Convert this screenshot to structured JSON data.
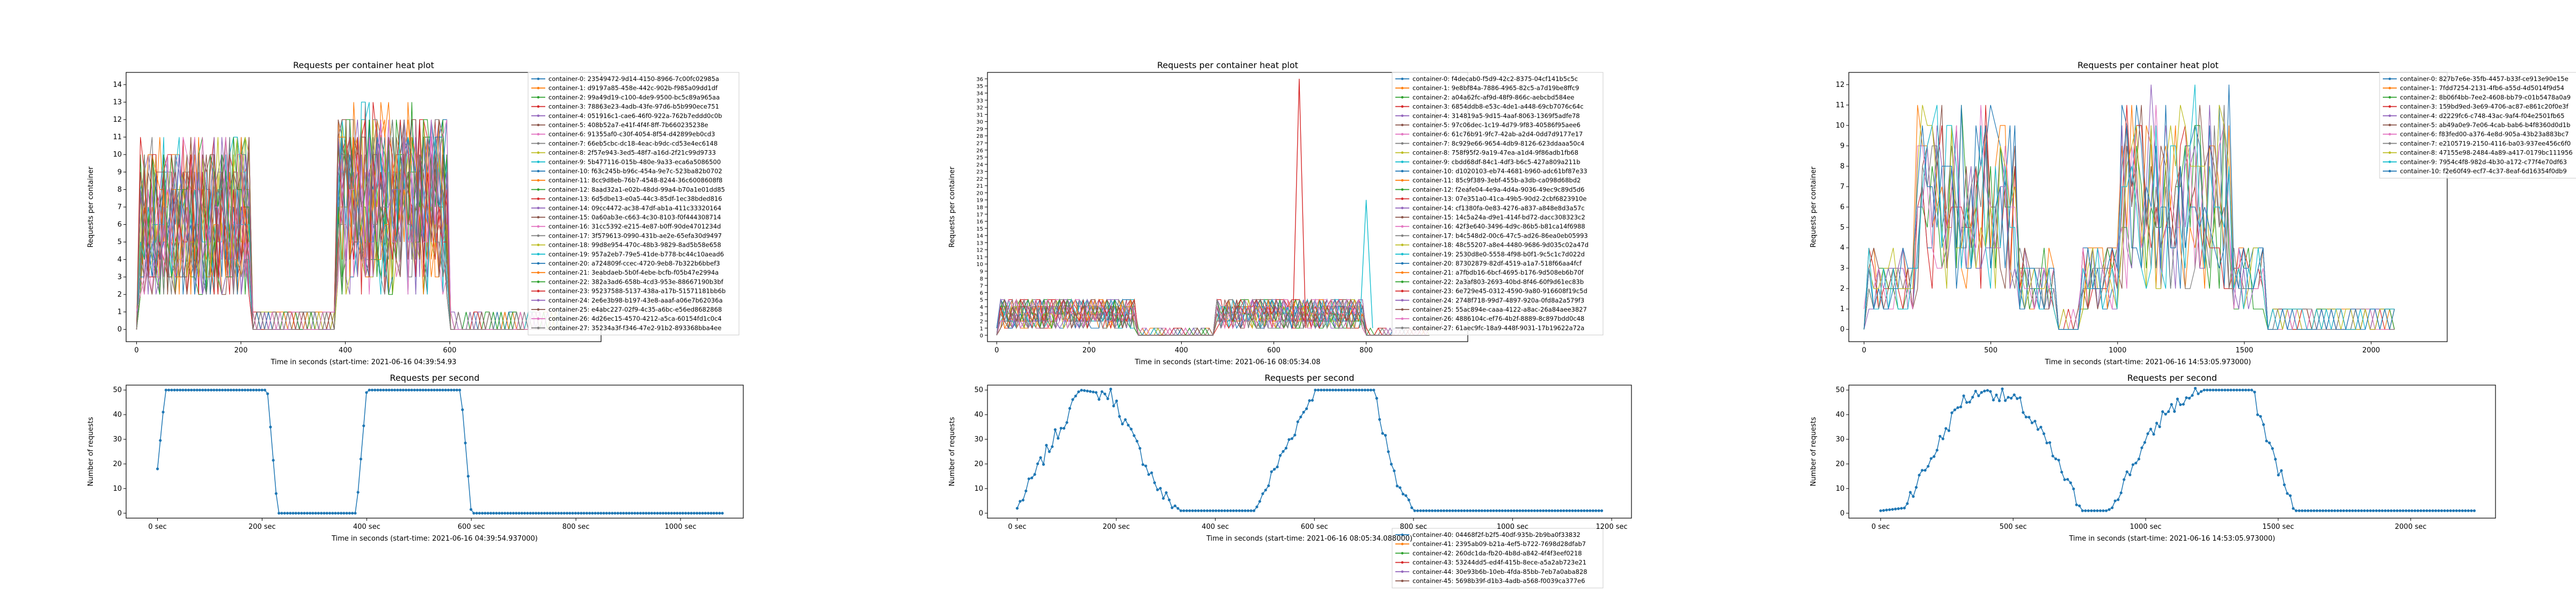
{
  "chart_data": [
    {
      "type": "line",
      "title": "Requests per container heat plot",
      "xlabel": "Time in seconds (start-time: 2021-06-16 04:39:54.93",
      "ylabel": "Requests per container",
      "xlim": [
        -20,
        890
      ],
      "ylim": [
        -0.7,
        14.7
      ],
      "xticks": [
        0,
        200,
        400,
        600
      ],
      "yticks": [
        0,
        1,
        2,
        3,
        4,
        5,
        6,
        7,
        8,
        9,
        10,
        11,
        12,
        13,
        14
      ],
      "legend": [
        "container-0: 23549472-9d14-4150-8966-7c00fc02985a",
        "container-1: d9197a85-458e-442c-902b-f985a09dd1df",
        "container-2: 99a49d19-c100-4de9-9500-bc5c89a965aa",
        "container-3: 78863e23-4adb-43fe-97d6-b5b990ece751",
        "container-4: 051916c1-cae6-46f0-922a-762b7eddd0c0b",
        "container-5: 408b52a7-e41f-4f4f-8ff-7b660235238e",
        "container-6: 91355af0-c30f-4054-8f54-d42899eb0cd3",
        "container-7: 66eb5cbc-dc18-4eac-b9dc-cd53e4ec6148",
        "container-8: 2f57e943-3ed5-48f7-a16d-2f21c99d9733",
        "container-9: 5b477116-015b-480e-9a33-eca6a5086500",
        "container-10: f63c245b-b96c-454a-9e7c-523ba82b0702",
        "container-11: 8cc9d8eb-76b7-4548-8244-36c6008608f8",
        "container-12: 8aad32a1-e02b-48dd-99a4-b70a1e01dd85",
        "container-13: 6d5dbe13-e0a5-44c3-85df-1ec38bded816",
        "container-14: 09cc4472-ac38-47df-ab1a-411c33320164",
        "container-15: 0a60ab3e-c663-4c30-8103-f0f444308714",
        "container-16: 31cc5392-e215-4e87-b0ff-90de4701234d",
        "container-17: 3f579613-0990-431b-ae2e-65efa30d9497",
        "container-18: 99d8e954-470c-48b3-9829-8ad5b58e658",
        "container-19: 957a2eb7-79e5-41de-b778-bc44c10aead6",
        "container-20: a724809f-ccec-4720-9eb8-7b322b6bbef3",
        "container-21: 3eabdaeb-5b0f-4ebe-bcfb-f05b47e2994a",
        "container-22: 382a3ad6-658b-4cd3-953e-88667190b3bf",
        "container-23: 95237588-5137-438a-a17b-51571181bb6b",
        "container-24: 2e6e3b98-b197-43e8-aaaf-a06e7b62036a",
        "container-25: e4abc227-02f9-4c35-a6bc-e56ed8682868",
        "container-26: 4d26ec15-4570-4212-a5ca-60154fd1c0c4",
        "container-27: 35234a3f-f346-47e2-91b2-893368bba4ee"
      ]
    },
    {
      "type": "line",
      "title": "Requests per second",
      "xlabel": "Time in seconds (start-time: 2021-06-16 04:39:54.937000)",
      "ylabel": "Number of requests",
      "xlim": [
        -60,
        1120
      ],
      "ylim": [
        -2,
        52
      ],
      "xticks": [
        0,
        200,
        400,
        600,
        800,
        1000
      ],
      "xticklabels": [
        "0 sec",
        "200 sec",
        "400 sec",
        "600 sec",
        "800 sec",
        "1000 sec"
      ],
      "yticks": [
        0,
        10,
        20,
        30,
        40,
        50
      ],
      "series": [
        {
          "phases": [
            [
              0,
              18
            ],
            [
              15,
              50
            ],
            [
              210,
              50
            ],
            [
              230,
              0
            ],
            [
              380,
              0
            ],
            [
              400,
              50
            ],
            [
              580,
              50
            ],
            [
              600,
              0
            ],
            [
              1080,
              0
            ]
          ]
        }
      ]
    },
    {
      "type": "line",
      "title": "Requests per container heat plot",
      "xlabel": "Time in seconds (start-time: 2021-06-16 08:05:34.08",
      "ylabel": "Requests per container",
      "xlim": [
        -20,
        1020
      ],
      "ylim": [
        -0.9,
        36.9
      ],
      "xticks": [
        0,
        200,
        400,
        600,
        800
      ],
      "yticks": [
        0,
        1,
        2,
        3,
        4,
        5,
        6,
        7,
        8,
        9,
        10,
        11,
        12,
        13,
        14,
        15,
        16,
        17,
        18,
        19,
        20,
        21,
        22,
        23,
        24,
        25,
        26,
        27,
        28,
        29,
        30,
        31,
        32,
        33,
        34,
        35,
        36
      ],
      "spikes": [
        [
          655,
          36
        ],
        [
          800,
          19
        ],
        [
          950,
          32
        ]
      ],
      "legend": [
        "container-0: f4decab0-f5d9-42c2-8375-04cf141b5c5c",
        "container-1: 9e8bf84a-7886-4965-82c5-a7d19be8ffc9",
        "container-2: a04a62fc-af9d-48f9-866c-aebcbd584ee",
        "container-3: 6854ddb8-e53c-4de1-a448-69cb7076c64c",
        "container-4: 314819a5-9d15-4aaf-8063-1369f5adfe78",
        "container-5: 97c06dec-1c19-4d79-9f83-40586f95aee6",
        "container-6: 61c76b91-9fc7-42ab-a2d4-0dd7d9177e17",
        "container-7: 8c929e66-9654-4db9-8126-623ddaaa50c4",
        "container-8: 758f95f2-9a19-47ea-a1d4-9f86adb1fb68",
        "container-9: cbdd68df-84c1-4df3-b6c5-427a809a211b",
        "container-10: d1020103-eb74-4681-b960-adc61bf87e33",
        "container-11: 85c9f389-3ebf-455b-a3db-ca098d68bd2",
        "container-12: f2eafe04-4e9a-4d4a-9036-49ec9c89d5d6",
        "container-13: 07e351a0-41ca-49b5-90d2-2cbf6823910e",
        "container-14: cf1380fa-0e83-4276-a837-a848e8d3a57c",
        "container-15: 14c5a24a-d9e1-414f-bd72-dacc308323c2",
        "container-16: 42f3e640-3496-4d9c-86b5-b81ca14f6988",
        "container-17: b4c548d2-00c6-47c5-ad26-86ea0eb05993",
        "container-18: 48c55207-a8e4-4480-9686-9d035c02a47d",
        "container-19: 2530d8e0-5558-4f98-b0f1-9c5c1c7d022d",
        "container-20: 87302879-82df-4519-a1a7-518f66aa4fcf",
        "container-21: a7fbdb16-6bcf-4695-b176-9d508eb6b70f",
        "container-22: 2a3af803-2693-40bd-8f46-60f9d61ec83b",
        "container-23: 6e729e45-0312-4590-9a80-916608f19c5d",
        "container-24: 2748f718-99d7-4897-920a-0fd8a2a579f3",
        "container-25: 55ac894e-caaa-4122-a8ac-26a84aee3827",
        "container-26: 4886104c-ef76-4b2f-8889-8c897bdd0c48",
        "container-27: 61aec9fc-18a9-448f-9031-17b19622a72a"
      ],
      "legend_lower": [
        "container-40: 04468f2f-b2f5-40df-935b-2b9ba0f33832",
        "container-41: 2395ab09-b21a-4ef5-b722-7698d28dfab7",
        "container-42: 260dc1da-fb20-4b8d-a842-4f4f3eef0218",
        "container-43: 53244dd5-ed4f-415b-8ece-a5a2ab723e21",
        "container-44: 30e93b6b-10eb-4fda-85bb-7eb7a0aba828",
        "container-45: 5698b39f-d1b3-4adb-a568-f0039ca377e6"
      ]
    },
    {
      "type": "line",
      "title": "Requests per second",
      "xlabel": "Time in seconds (start-time: 2021-06-16 08:05:34.088000)",
      "ylabel": "Number of requests",
      "xlim": [
        -60,
        1240
      ],
      "ylim": [
        -2,
        52
      ],
      "xticks": [
        0,
        200,
        400,
        600,
        800,
        1000,
        1200
      ],
      "xticklabels": [
        "0 sec",
        "200 sec",
        "400 sec",
        "600 sec",
        "800 sec",
        "1000 sec",
        "1200 sec"
      ],
      "yticks": [
        0,
        10,
        20,
        30,
        40,
        50
      ],
      "series": [
        {
          "phases": [
            [
              0,
              2
            ],
            [
              60,
              25
            ],
            [
              130,
              50
            ],
            [
              190,
              48
            ],
            [
              290,
              8
            ],
            [
              330,
              1
            ],
            [
              480,
              1
            ],
            [
              550,
              30
            ],
            [
              600,
              50
            ],
            [
              720,
              50
            ],
            [
              760,
              15
            ],
            [
              800,
              1
            ],
            [
              1180,
              1
            ]
          ]
        }
      ]
    },
    {
      "type": "line",
      "title": "Requests per container heat plot",
      "xlabel": "Time in seconds (start-time: 2021-06-16 14:53:05.973000)",
      "ylabel": "Requests per container",
      "xlim": [
        -60,
        2300
      ],
      "ylim": [
        -0.6,
        12.6
      ],
      "xticks": [
        0,
        500,
        1000,
        1500,
        2000
      ],
      "yticks": [
        0,
        1,
        2,
        3,
        4,
        5,
        6,
        7,
        8,
        9,
        10,
        11,
        12
      ],
      "legend": [
        "container-0: 827b7e6e-35fb-4457-b33f-ce913e90e15e",
        "container-1: 7fdd7254-2131-4fb6-a55d-4d5014f9d54",
        "container-2: 8b06f4bb-7ee2-4608-bb79-c01b5478a0a9",
        "container-3: 159bd9ed-3e69-4706-ac87-e861c20f0e3f",
        "container-4: d2229fc6-c748-43ac-9af4-f04e2501fb65",
        "container-5: ab49a0e9-7e06-4cab-bab6-b4f8360d0d1b",
        "container-6: f83fed00-a376-4e8d-905a-43b23a883bc7",
        "container-7: e2105719-2150-4116-ba03-937ee456c6f0",
        "container-8: 47155e98-2484-4a89-a417-0179bc111956",
        "container-9: 7954c4f8-982d-4b30-a172-c77f4e70df63",
        "container-10: f2e60f49-ecf7-4c37-8eaf-6d16354f0db9"
      ]
    },
    {
      "type": "line",
      "title": "Requests per second",
      "xlabel": "Time in seconds (start-time: 2021-06-16 14:53:05.973000)",
      "ylabel": "Number of requests",
      "xlim": [
        -120,
        2320
      ],
      "ylim": [
        -2,
        52
      ],
      "xticks": [
        0,
        500,
        1000,
        1500,
        2000
      ],
      "xticklabels": [
        "0 sec",
        "500 sec",
        "1000 sec",
        "1500 sec",
        "2000 sec"
      ],
      "yticks": [
        0,
        10,
        20,
        30,
        40,
        50
      ],
      "series": [
        {
          "phases": [
            [
              0,
              1
            ],
            [
              80,
              2
            ],
            [
              180,
              20
            ],
            [
              300,
              45
            ],
            [
              400,
              50
            ],
            [
              520,
              45
            ],
            [
              620,
              30
            ],
            [
              760,
              1
            ],
            [
              860,
              1
            ],
            [
              980,
              25
            ],
            [
              1080,
              42
            ],
            [
              1220,
              50
            ],
            [
              1400,
              50
            ],
            [
              1460,
              30
            ],
            [
              1560,
              1
            ],
            [
              2240,
              1
            ]
          ]
        }
      ]
    }
  ]
}
